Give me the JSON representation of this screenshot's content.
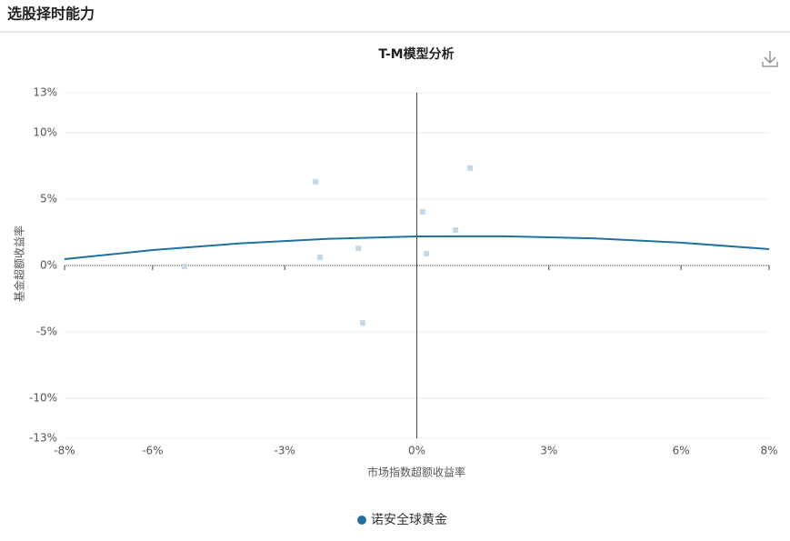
{
  "header": {
    "title": "选股择时能力"
  },
  "chart_data": {
    "type": "scatter",
    "title": "T-M模型分析",
    "x_label": "市场指数超额收益率",
    "y_label": "基金超额收益率",
    "xlim": [
      -8,
      8
    ],
    "ylim": [
      -13,
      13
    ],
    "xticks": [
      {
        "value": -8,
        "label": "-8%"
      },
      {
        "value": -6,
        "label": "-6%"
      },
      {
        "value": -3,
        "label": "-3%"
      },
      {
        "value": 0,
        "label": "0%"
      },
      {
        "value": 3,
        "label": "3%"
      },
      {
        "value": 6,
        "label": "6%"
      },
      {
        "value": 8,
        "label": "8%"
      }
    ],
    "yticks": [
      {
        "value": -13,
        "label": "-13%"
      },
      {
        "value": -10,
        "label": "-10%"
      },
      {
        "value": -5,
        "label": "-5%"
      },
      {
        "value": 0,
        "label": "0%"
      },
      {
        "value": 5,
        "label": "5%"
      },
      {
        "value": 10,
        "label": "10%"
      },
      {
        "value": 13,
        "label": "13%"
      }
    ],
    "grid": true,
    "legend": "bottom",
    "series": [
      {
        "name": "诺安全球黄金",
        "type": "scatter",
        "color": "#c3d9ea",
        "legend_color": "#21709f",
        "x": [
          -5.28,
          -2.3,
          -2.2,
          -1.33,
          -1.23,
          0.13,
          0.22,
          0.88,
          1.21
        ],
        "values": [
          -0.07,
          6.3,
          0.62,
          1.3,
          -4.32,
          4.04,
          0.89,
          2.67,
          7.33
        ]
      },
      {
        "type": "line",
        "color": "#21709f",
        "x": [
          -8,
          -6,
          -4,
          -2,
          0,
          2,
          4,
          6,
          8
        ],
        "values": [
          0.48,
          1.16,
          1.67,
          2.01,
          2.19,
          2.2,
          2.04,
          1.72,
          1.23
        ]
      }
    ]
  }
}
